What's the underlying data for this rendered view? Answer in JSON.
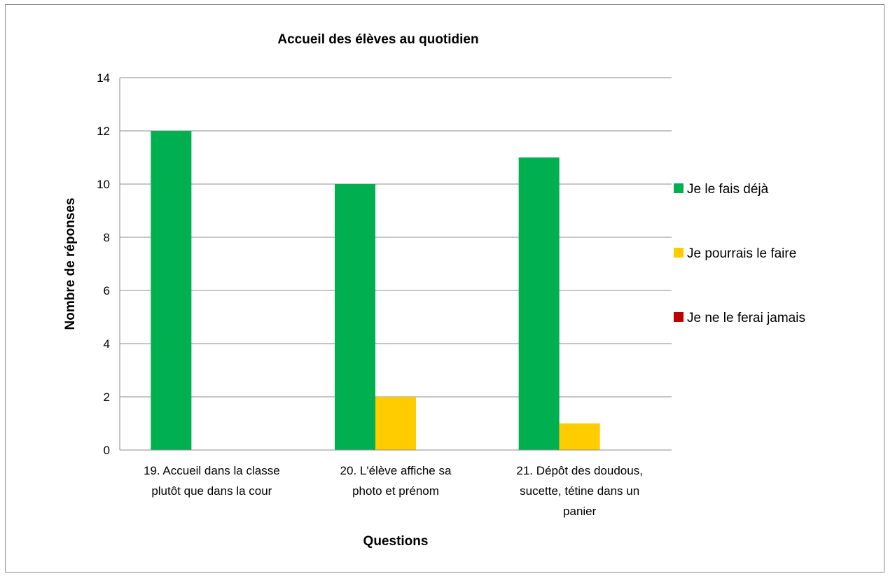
{
  "chart_data": {
    "type": "bar",
    "title": "Accueil des élèves au quotidien",
    "xlabel": "Questions",
    "ylabel": "Nombre de réponses",
    "ylim": [
      0,
      14
    ],
    "yticks": [
      0,
      2,
      4,
      6,
      8,
      10,
      12,
      14
    ],
    "grid": true,
    "legend_position": "right",
    "categories": [
      [
        "19. Accueil dans la classe",
        "plutôt que dans la cour"
      ],
      [
        "20. L'élève affiche sa",
        "photo et prénom"
      ],
      [
        "21. Dépôt des doudous,",
        "sucette, tétine dans un",
        "panier"
      ]
    ],
    "series": [
      {
        "name": "Je le fais déjà",
        "color": "#00b050",
        "values": [
          12,
          10,
          11
        ]
      },
      {
        "name": "Je pourrais le faire",
        "color": "#ffcc00",
        "values": [
          0,
          2,
          1
        ]
      },
      {
        "name": "Je ne le ferai jamais",
        "color": "#c00000",
        "values": [
          0,
          0,
          0
        ]
      }
    ]
  }
}
